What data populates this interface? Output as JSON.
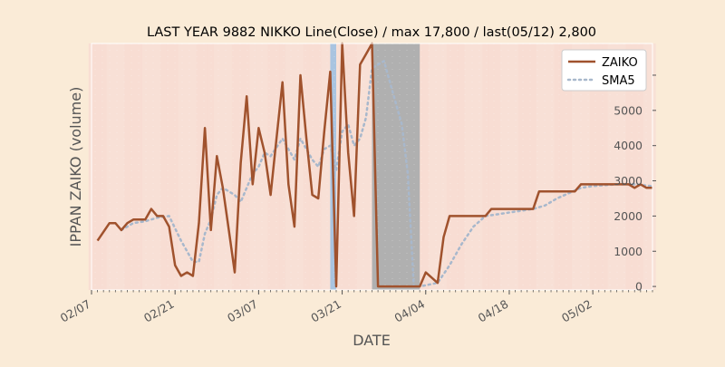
{
  "chart_data": {
    "type": "line",
    "title": "LAST YEAR 9882 NIKKO Line(Close) / max 17,800 / last(05/12) 2,800",
    "xlabel": "DATE",
    "ylabel": "IPPAN ZAIKO (volume)",
    "x_range": [
      "2022-02-07",
      "2022-05-12"
    ],
    "ylim": [
      -100,
      6900
    ],
    "y_ticks": [
      0,
      1000,
      2000,
      3000,
      4000,
      5000,
      6000
    ],
    "x_ticks": [
      {
        "date": "2022-02-07",
        "label": "02/07"
      },
      {
        "date": "2022-02-21",
        "label": "02/21"
      },
      {
        "date": "2022-03-07",
        "label": "03/07"
      },
      {
        "date": "2022-03-21",
        "label": "03/21"
      },
      {
        "date": "2022-04-04",
        "label": "04/04"
      },
      {
        "date": "2022-04-18",
        "label": "04/18"
      },
      {
        "date": "2022-05-02",
        "label": "05/02"
      }
    ],
    "legend_position": "top-right",
    "grid": false,
    "series": [
      {
        "name": "ZAIKO",
        "style": "solid",
        "color": "#a0522d",
        "points": [
          [
            "2022-02-08",
            1300
          ],
          [
            "2022-02-10",
            1800
          ],
          [
            "2022-02-11",
            1800
          ],
          [
            "2022-02-12",
            1600
          ],
          [
            "2022-02-13",
            1800
          ],
          [
            "2022-02-14",
            1900
          ],
          [
            "2022-02-16",
            1900
          ],
          [
            "2022-02-17",
            2200
          ],
          [
            "2022-02-18",
            2000
          ],
          [
            "2022-02-19",
            2000
          ],
          [
            "2022-02-20",
            1700
          ],
          [
            "2022-02-21",
            600
          ],
          [
            "2022-02-22",
            300
          ],
          [
            "2022-02-23",
            400
          ],
          [
            "2022-02-24",
            300
          ],
          [
            "2022-02-25",
            1800
          ],
          [
            "2022-02-26",
            4500
          ],
          [
            "2022-02-27",
            1600
          ],
          [
            "2022-02-28",
            3700
          ],
          [
            "2022-03-01",
            2800
          ],
          [
            "2022-03-02",
            1600
          ],
          [
            "2022-03-03",
            400
          ],
          [
            "2022-03-04",
            3500
          ],
          [
            "2022-03-05",
            5400
          ],
          [
            "2022-03-06",
            2900
          ],
          [
            "2022-03-07",
            4500
          ],
          [
            "2022-03-08",
            3800
          ],
          [
            "2022-03-09",
            2600
          ],
          [
            "2022-03-10",
            4200
          ],
          [
            "2022-03-11",
            5800
          ],
          [
            "2022-03-12",
            2900
          ],
          [
            "2022-03-13",
            1700
          ],
          [
            "2022-03-14",
            6000
          ],
          [
            "2022-03-15",
            4200
          ],
          [
            "2022-03-16",
            2600
          ],
          [
            "2022-03-17",
            2500
          ],
          [
            "2022-03-18",
            4400
          ],
          [
            "2022-03-19",
            6100
          ],
          [
            "2022-03-20",
            0
          ],
          [
            "2022-03-21",
            6900
          ],
          [
            "2022-03-22",
            3800
          ],
          [
            "2022-03-23",
            2000
          ],
          [
            "2022-03-24",
            6300
          ],
          [
            "2022-03-25",
            6600
          ],
          [
            "2022-03-26",
            6900
          ],
          [
            "2022-03-27",
            0
          ],
          [
            "2022-04-03",
            0
          ],
          [
            "2022-04-04",
            400
          ],
          [
            "2022-04-05",
            250
          ],
          [
            "2022-04-06",
            100
          ],
          [
            "2022-04-07",
            1400
          ],
          [
            "2022-04-08",
            2000
          ],
          [
            "2022-04-14",
            2000
          ],
          [
            "2022-04-15",
            2200
          ],
          [
            "2022-04-22",
            2200
          ],
          [
            "2022-04-23",
            2700
          ],
          [
            "2022-04-29",
            2700
          ],
          [
            "2022-04-30",
            2900
          ],
          [
            "2022-05-08",
            2900
          ],
          [
            "2022-05-09",
            2800
          ],
          [
            "2022-05-10",
            2900
          ],
          [
            "2022-05-11",
            2800
          ],
          [
            "2022-05-12",
            2800
          ]
        ]
      },
      {
        "name": "SMA5",
        "style": "dotted",
        "color": "#a8b8cc",
        "points": [
          [
            "2022-02-12",
            1600
          ],
          [
            "2022-02-14",
            1800
          ],
          [
            "2022-02-16",
            1850
          ],
          [
            "2022-02-18",
            1950
          ],
          [
            "2022-02-20",
            2000
          ],
          [
            "2022-02-22",
            1300
          ],
          [
            "2022-02-24",
            700
          ],
          [
            "2022-02-25",
            700
          ],
          [
            "2022-02-26",
            1500
          ],
          [
            "2022-02-27",
            1900
          ],
          [
            "2022-02-28",
            2600
          ],
          [
            "2022-03-01",
            2800
          ],
          [
            "2022-03-03",
            2600
          ],
          [
            "2022-03-04",
            2400
          ],
          [
            "2022-03-05",
            2800
          ],
          [
            "2022-03-06",
            3200
          ],
          [
            "2022-03-07",
            3400
          ],
          [
            "2022-03-08",
            3800
          ],
          [
            "2022-03-09",
            3700
          ],
          [
            "2022-03-11",
            4200
          ],
          [
            "2022-03-12",
            3900
          ],
          [
            "2022-03-13",
            3600
          ],
          [
            "2022-03-14",
            4200
          ],
          [
            "2022-03-15",
            3900
          ],
          [
            "2022-03-16",
            3600
          ],
          [
            "2022-03-17",
            3400
          ],
          [
            "2022-03-18",
            3900
          ],
          [
            "2022-03-19",
            4000
          ],
          [
            "2022-03-20",
            3300
          ],
          [
            "2022-03-21",
            4400
          ],
          [
            "2022-03-22",
            4600
          ],
          [
            "2022-03-23",
            4000
          ],
          [
            "2022-03-24",
            4200
          ],
          [
            "2022-03-25",
            4800
          ],
          [
            "2022-03-26",
            6200
          ],
          [
            "2022-03-28",
            6400
          ],
          [
            "2022-03-31",
            4600
          ],
          [
            "2022-04-01",
            3200
          ],
          [
            "2022-04-02",
            0
          ],
          [
            "2022-04-03",
            0
          ],
          [
            "2022-04-06",
            100
          ],
          [
            "2022-04-08",
            600
          ],
          [
            "2022-04-10",
            1200
          ],
          [
            "2022-04-12",
            1700
          ],
          [
            "2022-04-14",
            2000
          ],
          [
            "2022-04-16",
            2050
          ],
          [
            "2022-04-18",
            2100
          ],
          [
            "2022-04-22",
            2200
          ],
          [
            "2022-04-24",
            2300
          ],
          [
            "2022-04-26",
            2500
          ],
          [
            "2022-04-28",
            2650
          ],
          [
            "2022-04-30",
            2800
          ],
          [
            "2022-05-02",
            2850
          ],
          [
            "2022-05-06",
            2900
          ],
          [
            "2022-05-09",
            2900
          ],
          [
            "2022-05-12",
            2850
          ]
        ]
      }
    ],
    "background_bands": [
      {
        "from": "2022-03-19",
        "to": "2022-03-20",
        "color": "#a9c4e0"
      },
      {
        "from": "2022-03-26",
        "to": "2022-04-03",
        "color": "#b0b0b0"
      }
    ]
  }
}
